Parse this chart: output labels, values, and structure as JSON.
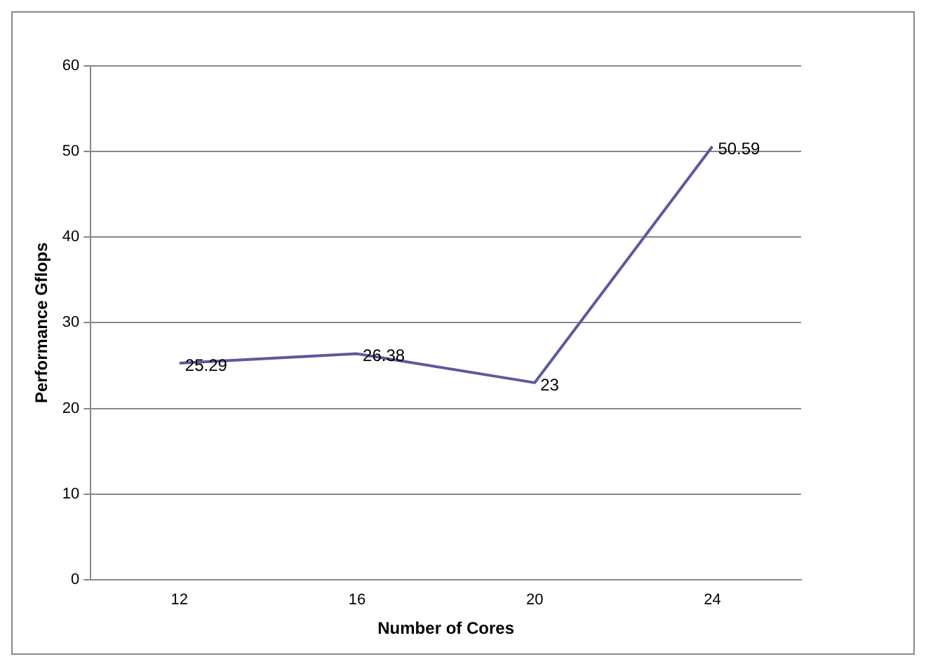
{
  "chart_data": {
    "type": "line",
    "xlabel": "Number of Cores",
    "ylabel": "Performance Gflops",
    "categories": [
      "12",
      "16",
      "20",
      "24"
    ],
    "series": [
      {
        "color": "#5c5a9c",
        "values": [
          25.29,
          26.38,
          23,
          50.59
        ]
      }
    ],
    "ylim": [
      0,
      60
    ],
    "yticks": [
      0,
      10,
      20,
      30,
      40,
      50,
      60
    ],
    "grid": "y",
    "legend": false,
    "marker": "none",
    "line_style": "solid",
    "data_labels": true
  }
}
